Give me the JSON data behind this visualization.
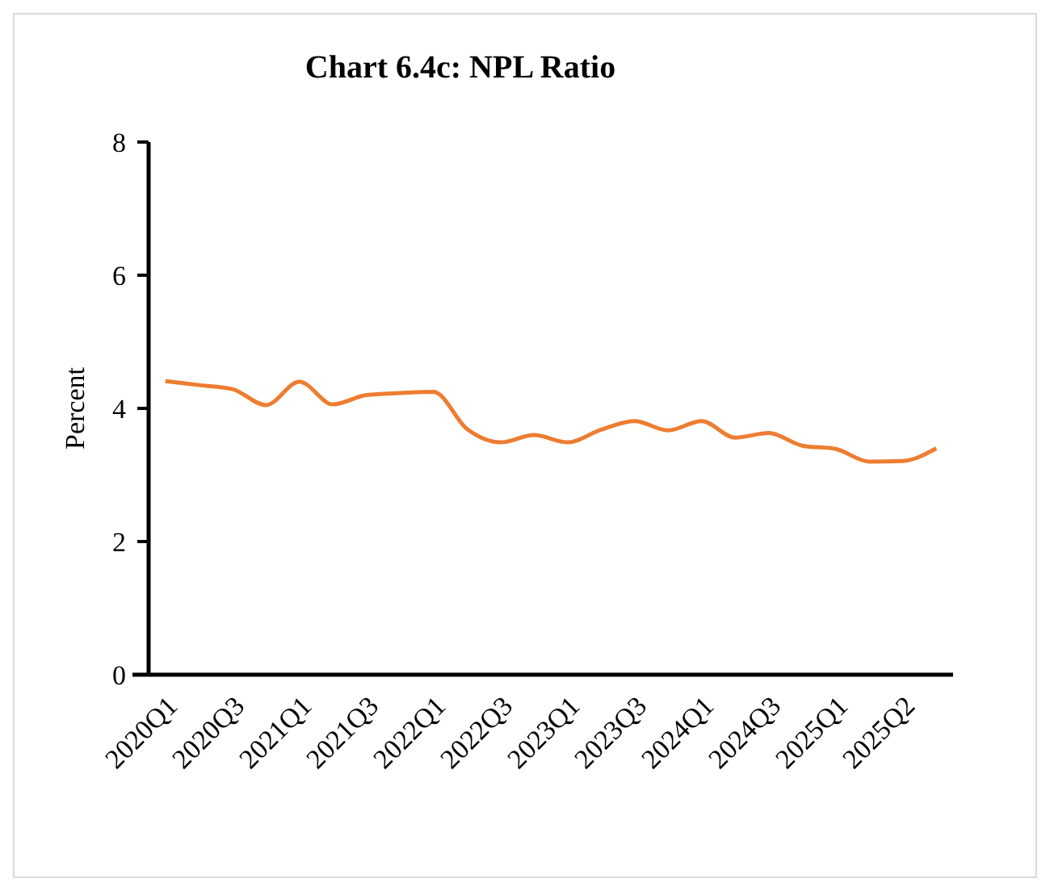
{
  "chart_data": {
    "type": "line",
    "title": "Chart 6.4c: NPL Ratio",
    "ylabel": "Percent",
    "categories": [
      "2020Q1",
      null,
      "2020Q3",
      null,
      "2021Q1",
      null,
      "2021Q3",
      null,
      "2022Q1",
      null,
      "2022Q3",
      null,
      "2023Q1",
      null,
      "2023Q3",
      null,
      "2024Q1",
      null,
      "2024Q3",
      null,
      "2025Q1",
      null,
      "2025Q2",
      null
    ],
    "series": [
      {
        "color": "#ed7d31",
        "values": [
          4.41,
          4.35,
          4.29,
          4.05,
          4.4,
          4.06,
          4.2,
          4.23,
          4.25,
          3.69,
          3.49,
          3.6,
          3.49,
          3.68,
          3.81,
          3.67,
          3.81,
          3.56,
          3.63,
          3.44,
          3.39,
          3.2,
          3.21,
          3.4
        ]
      }
    ],
    "ylim": [
      0,
      8
    ],
    "yticks": [
      0,
      2,
      4,
      6,
      8
    ],
    "grid": false,
    "marker": "none",
    "line_style": "solid"
  }
}
